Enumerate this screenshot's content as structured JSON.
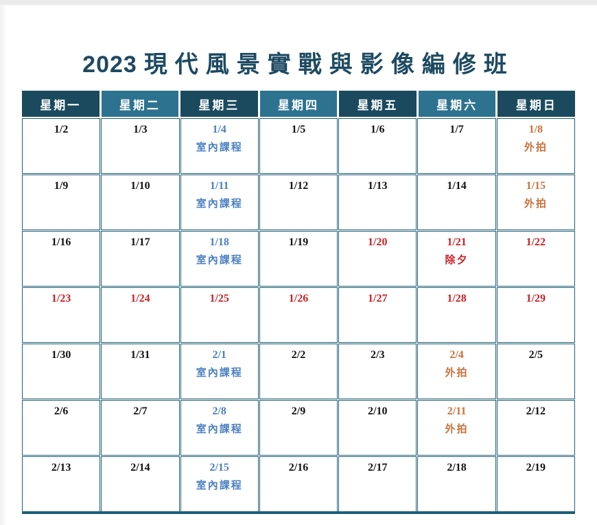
{
  "title": {
    "year": "2023",
    "name": "現代風景實戰與影像編修班"
  },
  "colors": {
    "title": "#1d4a61",
    "header_dark": "#1b4a5e",
    "header_light": "#2d7390",
    "header_text": "#ffffff",
    "border": "#1f5f77",
    "date_normal": "#121212",
    "holiday": "#cb2027",
    "indoor": "#4a7fc0",
    "outdoor": "#c9703a"
  },
  "calendar": {
    "weekdays": [
      "星期一",
      "星期二",
      "星期三",
      "星期四",
      "星期五",
      "星期六",
      "星期日"
    ],
    "labels": {
      "indoor": "室內課程",
      "outdoor": "外拍",
      "eve": "除夕"
    },
    "rows": [
      [
        {
          "date": "1/2",
          "type": "normal"
        },
        {
          "date": "1/3",
          "type": "normal"
        },
        {
          "date": "1/4",
          "type": "indoor",
          "label": "室內課程"
        },
        {
          "date": "1/5",
          "type": "normal"
        },
        {
          "date": "1/6",
          "type": "normal"
        },
        {
          "date": "1/7",
          "type": "normal"
        },
        {
          "date": "1/8",
          "type": "outdoor",
          "label": "外拍"
        }
      ],
      [
        {
          "date": "1/9",
          "type": "normal"
        },
        {
          "date": "1/10",
          "type": "normal"
        },
        {
          "date": "1/11",
          "type": "indoor",
          "label": "室內課程"
        },
        {
          "date": "1/12",
          "type": "normal"
        },
        {
          "date": "1/13",
          "type": "normal"
        },
        {
          "date": "1/14",
          "type": "normal"
        },
        {
          "date": "1/15",
          "type": "outdoor",
          "label": "外拍"
        }
      ],
      [
        {
          "date": "1/16",
          "type": "normal"
        },
        {
          "date": "1/17",
          "type": "normal"
        },
        {
          "date": "1/18",
          "type": "indoor",
          "label": "室內課程"
        },
        {
          "date": "1/19",
          "type": "normal"
        },
        {
          "date": "1/20",
          "type": "holiday"
        },
        {
          "date": "1/21",
          "type": "holiday",
          "label": "除夕"
        },
        {
          "date": "1/22",
          "type": "holiday"
        }
      ],
      [
        {
          "date": "1/23",
          "type": "holiday"
        },
        {
          "date": "1/24",
          "type": "holiday"
        },
        {
          "date": "1/25",
          "type": "holiday"
        },
        {
          "date": "1/26",
          "type": "holiday"
        },
        {
          "date": "1/27",
          "type": "holiday"
        },
        {
          "date": "1/28",
          "type": "holiday"
        },
        {
          "date": "1/29",
          "type": "holiday"
        }
      ],
      [
        {
          "date": "1/30",
          "type": "normal"
        },
        {
          "date": "1/31",
          "type": "normal"
        },
        {
          "date": "2/1",
          "type": "indoor",
          "label": "室內課程"
        },
        {
          "date": "2/2",
          "type": "normal"
        },
        {
          "date": "2/3",
          "type": "normal"
        },
        {
          "date": "2/4",
          "type": "outdoor",
          "label": "外拍"
        },
        {
          "date": "2/5",
          "type": "normal"
        }
      ],
      [
        {
          "date": "2/6",
          "type": "normal"
        },
        {
          "date": "2/7",
          "type": "normal"
        },
        {
          "date": "2/8",
          "type": "indoor",
          "label": "室內課程"
        },
        {
          "date": "2/9",
          "type": "normal"
        },
        {
          "date": "2/10",
          "type": "normal"
        },
        {
          "date": "2/11",
          "type": "outdoor",
          "label": "外拍"
        },
        {
          "date": "2/12",
          "type": "normal"
        }
      ],
      [
        {
          "date": "2/13",
          "type": "normal"
        },
        {
          "date": "2/14",
          "type": "normal"
        },
        {
          "date": "2/15",
          "type": "indoor",
          "label": "室內課程"
        },
        {
          "date": "2/16",
          "type": "normal"
        },
        {
          "date": "2/17",
          "type": "normal"
        },
        {
          "date": "2/18",
          "type": "normal"
        },
        {
          "date": "2/19",
          "type": "normal"
        }
      ]
    ]
  }
}
